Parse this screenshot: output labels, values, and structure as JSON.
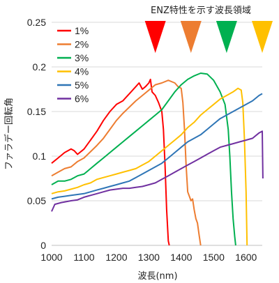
{
  "chart_data": {
    "type": "line",
    "title": "",
    "xlabel": "波長(nm)",
    "ylabel": "ファラデー回転角",
    "xlim": [
      1000,
      1650
    ],
    "ylim": [
      0,
      0.25
    ],
    "x_ticks": [
      "1000",
      "1100",
      "1200",
      "1300",
      "1400",
      "1500",
      "1600"
    ],
    "y_ticks": [
      "0",
      "0.05",
      "0.1",
      "0.15",
      "0.2",
      "0.25"
    ],
    "grid": true,
    "legend_position": "top-left",
    "series": [
      {
        "name": "1%",
        "color": "#ff0000",
        "points": [
          [
            1000,
            0.092
          ],
          [
            1020,
            0.098
          ],
          [
            1040,
            0.104
          ],
          [
            1060,
            0.108
          ],
          [
            1070,
            0.106
          ],
          [
            1080,
            0.102
          ],
          [
            1100,
            0.108
          ],
          [
            1120,
            0.118
          ],
          [
            1140,
            0.128
          ],
          [
            1160,
            0.14
          ],
          [
            1180,
            0.15
          ],
          [
            1200,
            0.158
          ],
          [
            1220,
            0.162
          ],
          [
            1240,
            0.17
          ],
          [
            1260,
            0.178
          ],
          [
            1270,
            0.182
          ],
          [
            1280,
            0.175
          ],
          [
            1290,
            0.178
          ],
          [
            1300,
            0.182
          ],
          [
            1305,
            0.186
          ],
          [
            1310,
            0.172
          ],
          [
            1320,
            0.168
          ],
          [
            1330,
            0.16
          ],
          [
            1340,
            0.15
          ],
          [
            1345,
            0.13
          ],
          [
            1350,
            0.09
          ],
          [
            1355,
            0.04
          ],
          [
            1360,
            0.005
          ],
          [
            1363,
            0.0
          ]
        ]
      },
      {
        "name": "2%",
        "color": "#ed7d31",
        "points": [
          [
            1000,
            0.078
          ],
          [
            1020,
            0.082
          ],
          [
            1040,
            0.086
          ],
          [
            1060,
            0.088
          ],
          [
            1080,
            0.094
          ],
          [
            1100,
            0.098
          ],
          [
            1120,
            0.105
          ],
          [
            1140,
            0.112
          ],
          [
            1160,
            0.12
          ],
          [
            1180,
            0.13
          ],
          [
            1200,
            0.14
          ],
          [
            1220,
            0.148
          ],
          [
            1240,
            0.155
          ],
          [
            1260,
            0.162
          ],
          [
            1280,
            0.168
          ],
          [
            1300,
            0.174
          ],
          [
            1320,
            0.18
          ],
          [
            1340,
            0.182
          ],
          [
            1360,
            0.185
          ],
          [
            1380,
            0.182
          ],
          [
            1390,
            0.178
          ],
          [
            1400,
            0.176
          ],
          [
            1405,
            0.16
          ],
          [
            1410,
            0.13
          ],
          [
            1415,
            0.09
          ],
          [
            1420,
            0.06
          ],
          [
            1425,
            0.055
          ],
          [
            1430,
            0.05
          ],
          [
            1435,
            0.052
          ],
          [
            1440,
            0.04
          ],
          [
            1445,
            0.03
          ],
          [
            1450,
            0.025
          ],
          [
            1455,
            0.012
          ],
          [
            1460,
            0.0
          ]
        ]
      },
      {
        "name": "3%",
        "color": "#00b050",
        "points": [
          [
            1000,
            0.068
          ],
          [
            1020,
            0.072
          ],
          [
            1040,
            0.072
          ],
          [
            1060,
            0.074
          ],
          [
            1080,
            0.078
          ],
          [
            1100,
            0.08
          ],
          [
            1120,
            0.086
          ],
          [
            1140,
            0.092
          ],
          [
            1160,
            0.098
          ],
          [
            1180,
            0.104
          ],
          [
            1200,
            0.11
          ],
          [
            1220,
            0.116
          ],
          [
            1240,
            0.122
          ],
          [
            1260,
            0.128
          ],
          [
            1280,
            0.134
          ],
          [
            1300,
            0.14
          ],
          [
            1320,
            0.146
          ],
          [
            1340,
            0.152
          ],
          [
            1360,
            0.162
          ],
          [
            1380,
            0.172
          ],
          [
            1400,
            0.18
          ],
          [
            1420,
            0.186
          ],
          [
            1440,
            0.19
          ],
          [
            1460,
            0.193
          ],
          [
            1480,
            0.192
          ],
          [
            1500,
            0.185
          ],
          [
            1520,
            0.172
          ],
          [
            1535,
            0.158
          ],
          [
            1545,
            0.13
          ],
          [
            1550,
            0.1
          ],
          [
            1555,
            0.06
          ],
          [
            1560,
            0.03
          ],
          [
            1565,
            0.01
          ],
          [
            1568,
            0.0
          ]
        ]
      },
      {
        "name": "4%",
        "color": "#ffc000",
        "points": [
          [
            1000,
            0.058
          ],
          [
            1020,
            0.06
          ],
          [
            1040,
            0.061
          ],
          [
            1060,
            0.063
          ],
          [
            1080,
            0.065
          ],
          [
            1100,
            0.068
          ],
          [
            1120,
            0.07
          ],
          [
            1140,
            0.074
          ],
          [
            1160,
            0.076
          ],
          [
            1180,
            0.078
          ],
          [
            1200,
            0.08
          ],
          [
            1220,
            0.082
          ],
          [
            1240,
            0.084
          ],
          [
            1260,
            0.086
          ],
          [
            1280,
            0.09
          ],
          [
            1300,
            0.094
          ],
          [
            1320,
            0.1
          ],
          [
            1340,
            0.106
          ],
          [
            1360,
            0.112
          ],
          [
            1380,
            0.118
          ],
          [
            1400,
            0.124
          ],
          [
            1420,
            0.132
          ],
          [
            1440,
            0.138
          ],
          [
            1460,
            0.146
          ],
          [
            1480,
            0.152
          ],
          [
            1500,
            0.158
          ],
          [
            1520,
            0.164
          ],
          [
            1540,
            0.168
          ],
          [
            1560,
            0.172
          ],
          [
            1575,
            0.176
          ],
          [
            1585,
            0.174
          ],
          [
            1590,
            0.16
          ],
          [
            1595,
            0.12
          ],
          [
            1600,
            0.06
          ],
          [
            1603,
            0.0
          ]
        ]
      },
      {
        "name": "5%",
        "color": "#2e75b6",
        "points": [
          [
            1000,
            0.052
          ],
          [
            1020,
            0.054
          ],
          [
            1040,
            0.055
          ],
          [
            1060,
            0.056
          ],
          [
            1080,
            0.057
          ],
          [
            1100,
            0.058
          ],
          [
            1120,
            0.06
          ],
          [
            1140,
            0.062
          ],
          [
            1160,
            0.064
          ],
          [
            1180,
            0.066
          ],
          [
            1200,
            0.068
          ],
          [
            1220,
            0.07
          ],
          [
            1240,
            0.072
          ],
          [
            1260,
            0.076
          ],
          [
            1280,
            0.08
          ],
          [
            1300,
            0.084
          ],
          [
            1320,
            0.088
          ],
          [
            1340,
            0.092
          ],
          [
            1360,
            0.098
          ],
          [
            1380,
            0.104
          ],
          [
            1400,
            0.11
          ],
          [
            1420,
            0.116
          ],
          [
            1440,
            0.12
          ],
          [
            1460,
            0.124
          ],
          [
            1480,
            0.13
          ],
          [
            1500,
            0.136
          ],
          [
            1520,
            0.142
          ],
          [
            1540,
            0.146
          ],
          [
            1560,
            0.15
          ],
          [
            1580,
            0.154
          ],
          [
            1600,
            0.158
          ],
          [
            1620,
            0.162
          ],
          [
            1640,
            0.168
          ],
          [
            1650,
            0.17
          ]
        ]
      },
      {
        "name": "6%",
        "color": "#7030a0",
        "points": [
          [
            1000,
            0.038
          ],
          [
            1010,
            0.046
          ],
          [
            1030,
            0.048
          ],
          [
            1060,
            0.05
          ],
          [
            1080,
            0.051
          ],
          [
            1100,
            0.054
          ],
          [
            1120,
            0.056
          ],
          [
            1140,
            0.058
          ],
          [
            1160,
            0.06
          ],
          [
            1180,
            0.062
          ],
          [
            1200,
            0.063
          ],
          [
            1220,
            0.064
          ],
          [
            1240,
            0.064
          ],
          [
            1260,
            0.065
          ],
          [
            1280,
            0.066
          ],
          [
            1300,
            0.068
          ],
          [
            1320,
            0.07
          ],
          [
            1340,
            0.074
          ],
          [
            1360,
            0.078
          ],
          [
            1380,
            0.082
          ],
          [
            1400,
            0.086
          ],
          [
            1420,
            0.09
          ],
          [
            1440,
            0.094
          ],
          [
            1460,
            0.098
          ],
          [
            1480,
            0.102
          ],
          [
            1500,
            0.106
          ],
          [
            1520,
            0.11
          ],
          [
            1540,
            0.112
          ],
          [
            1560,
            0.114
          ],
          [
            1580,
            0.116
          ],
          [
            1600,
            0.118
          ],
          [
            1620,
            0.12
          ],
          [
            1640,
            0.126
          ],
          [
            1650,
            0.128
          ],
          [
            1652,
            0.075
          ]
        ]
      }
    ],
    "annotation": {
      "text": "ENZ特性を示す波長領域",
      "markers": [
        {
          "x": 1320,
          "color": "#ff0000"
        },
        {
          "x": 1430,
          "color": "#ed7d31"
        },
        {
          "x": 1540,
          "color": "#00b050"
        },
        {
          "x": 1650,
          "color": "#ffc000"
        }
      ]
    }
  }
}
